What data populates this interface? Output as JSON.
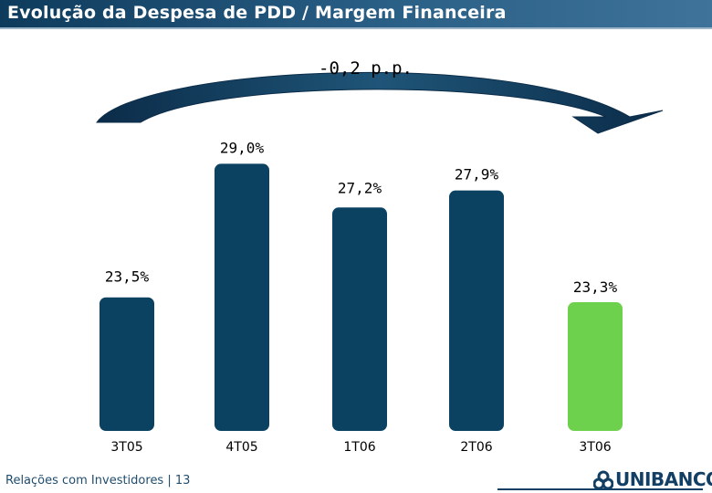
{
  "header": {
    "title": "Evolução da Despesa de PDD / Margem Financeira"
  },
  "annotation": {
    "variation": "-0,2 p.p."
  },
  "chart_data": {
    "type": "bar",
    "categories": [
      "3T05",
      "4T05",
      "1T06",
      "2T06",
      "3T06"
    ],
    "values": [
      23.5,
      29.0,
      27.2,
      27.9,
      23.3
    ],
    "value_labels": [
      "23,5%",
      "29,0%",
      "27,2%",
      "27,9%",
      "23,3%"
    ],
    "title": "Evolução da Despesa de PDD / Margem Financeira",
    "xlabel": "",
    "ylabel": "",
    "grid": false,
    "colors": [
      "#0b4262",
      "#0b4262",
      "#0b4262",
      "#0b4262",
      "#6dd14d"
    ]
  },
  "footer": {
    "text": "Relações com Investidores | 13",
    "logo_text": "UNIBANCO",
    "logo_icon": "unibanco-logo-icon"
  }
}
